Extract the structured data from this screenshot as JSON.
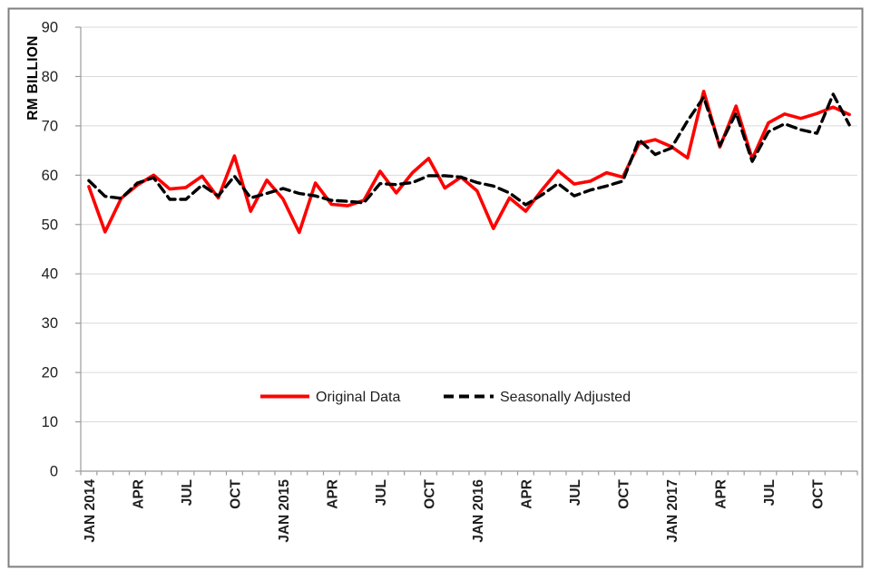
{
  "figure": {
    "background_color": "#ffffff",
    "border_color": "#7f7f7f",
    "grid_color": "#d9d9d9",
    "axis_color": "#9b9b9b",
    "text_color": "#1f1f1f"
  },
  "chart_data": {
    "type": "line",
    "title": "",
    "xlabel": "",
    "ylabel": "RM BILLION",
    "ylim": [
      0,
      90
    ],
    "ytick_interval": 10,
    "y_tick_labels": [
      "0",
      "10",
      "20",
      "30",
      "40",
      "50",
      "60",
      "70",
      "80",
      "90"
    ],
    "grid": "horizontal",
    "legend_position": "inside-bottom-center",
    "x_tick_label_step": 3,
    "x_tick_labels": [
      "JAN 2014",
      "APR",
      "JUL",
      "OCT",
      "JAN 2015",
      "APR",
      "JUL",
      "OCT",
      "JAN 2016",
      "APR",
      "JUL",
      "OCT",
      "JAN 2017",
      "APR",
      "JUL",
      "OCT"
    ],
    "categories": [
      "JAN 2014",
      "FEB 2014",
      "MAR 2014",
      "APR 2014",
      "MAY 2014",
      "JUN 2014",
      "JUL 2014",
      "AUG 2014",
      "SEP 2014",
      "OCT 2014",
      "NOV 2014",
      "DEC 2014",
      "JAN 2015",
      "FEB 2015",
      "MAR 2015",
      "APR 2015",
      "MAY 2015",
      "JUN 2015",
      "JUL 2015",
      "AUG 2015",
      "SEP 2015",
      "OCT 2015",
      "NOV 2015",
      "DEC 2015",
      "JAN 2016",
      "FEB 2016",
      "MAR 2016",
      "APR 2016",
      "MAY 2016",
      "JUN 2016",
      "JUL 2016",
      "AUG 2016",
      "SEP 2016",
      "OCT 2016",
      "NOV 2016",
      "DEC 2016",
      "JAN 2017",
      "FEB 2017",
      "MAR 2017",
      "APR 2017",
      "MAY 2017",
      "JUN 2017",
      "JUL 2017",
      "AUG 2017",
      "SEP 2017",
      "OCT 2017",
      "NOV 2017",
      "DEC 2017"
    ],
    "series": [
      {
        "name": "Original Data",
        "color": "#ff0000",
        "line_style": "solid",
        "values": [
          57.7,
          48.5,
          55.3,
          58.0,
          60.0,
          57.2,
          57.5,
          59.8,
          55.4,
          63.9,
          52.7,
          59.0,
          55.2,
          48.4,
          58.4,
          54.1,
          53.8,
          54.9,
          60.8,
          56.4,
          60.5,
          63.4,
          57.4,
          59.6,
          56.8,
          49.2,
          55.4,
          52.7,
          57.0,
          60.9,
          58.2,
          58.8,
          60.5,
          59.6,
          66.4,
          67.2,
          65.8,
          63.5,
          77.0,
          65.7,
          74.0,
          63.3,
          70.6,
          72.4,
          71.5,
          72.5,
          73.8,
          72.3
        ]
      },
      {
        "name": "Seasonally Adjusted",
        "color": "#000000",
        "line_style": "dashed",
        "values": [
          58.9,
          55.7,
          55.3,
          58.4,
          59.5,
          55.1,
          55.1,
          58.0,
          55.8,
          59.8,
          55.4,
          56.3,
          57.3,
          56.3,
          55.8,
          54.9,
          54.7,
          54.4,
          58.3,
          58.1,
          58.5,
          59.9,
          59.9,
          59.6,
          58.5,
          57.8,
          56.4,
          54.0,
          56.0,
          58.3,
          55.8,
          57.0,
          57.8,
          58.8,
          67.2,
          64.2,
          65.5,
          71.0,
          75.8,
          66.0,
          72.6,
          62.8,
          68.8,
          70.4,
          69.2,
          68.5,
          76.4,
          70.2
        ]
      }
    ]
  }
}
